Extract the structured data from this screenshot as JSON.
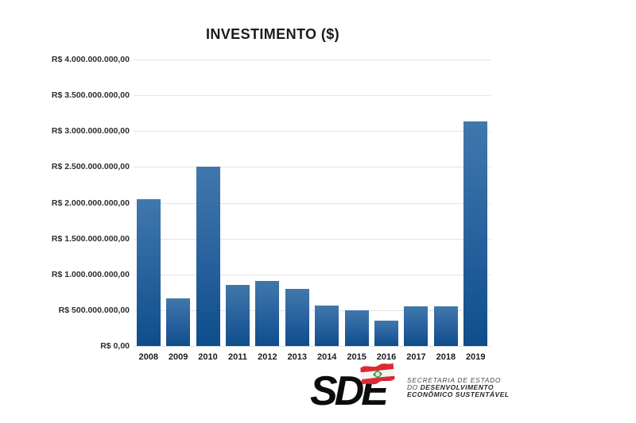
{
  "title": "INVESTIMENTO ($)",
  "chart_data": {
    "type": "bar",
    "title": "INVESTIMENTO ($)",
    "xlabel": "",
    "ylabel": "",
    "categories": [
      "2008",
      "2009",
      "2010",
      "2011",
      "2012",
      "2013",
      "2014",
      "2015",
      "2016",
      "2017",
      "2018",
      "2019"
    ],
    "values": [
      2050000000,
      660000000,
      2500000000,
      850000000,
      910000000,
      795000000,
      560000000,
      495000000,
      360000000,
      555000000,
      555000000,
      3140000000
    ],
    "ylim": [
      0,
      4000000000
    ],
    "ytick_labels": [
      "R$ 4.000.000.000,00",
      "R$ 3.500.000.000,00",
      "R$ 3.000.000.000,00",
      "R$ 2.500.000.000,00",
      "R$ 2.000.000.000,00",
      "R$ 1.500.000.000,00",
      "R$ 1.000.000.000,00",
      "R$ 500.000.000,00",
      "R$ 0,00"
    ],
    "grid": true,
    "legend": false,
    "bar_color_top": "#4078ac",
    "bar_color_bottom": "#0e4d8c",
    "gridline_color": "#e3e3e3"
  },
  "logo": {
    "acronym": "SDE",
    "line1": "SECRETARIA DE ESTADO",
    "line2_prefix": "DO ",
    "line2_bold": "DESENVOLVIMENTO",
    "line3": "ECONÔMICO SUSTENTÁVEL",
    "flag_icon": "santa-catarina-flag-icon",
    "colors": {
      "flag_red": "#dd2a33",
      "flag_white": "#f7f5f0",
      "flag_green": "#2e9e44",
      "wordmark": "#0c0c0c"
    }
  }
}
